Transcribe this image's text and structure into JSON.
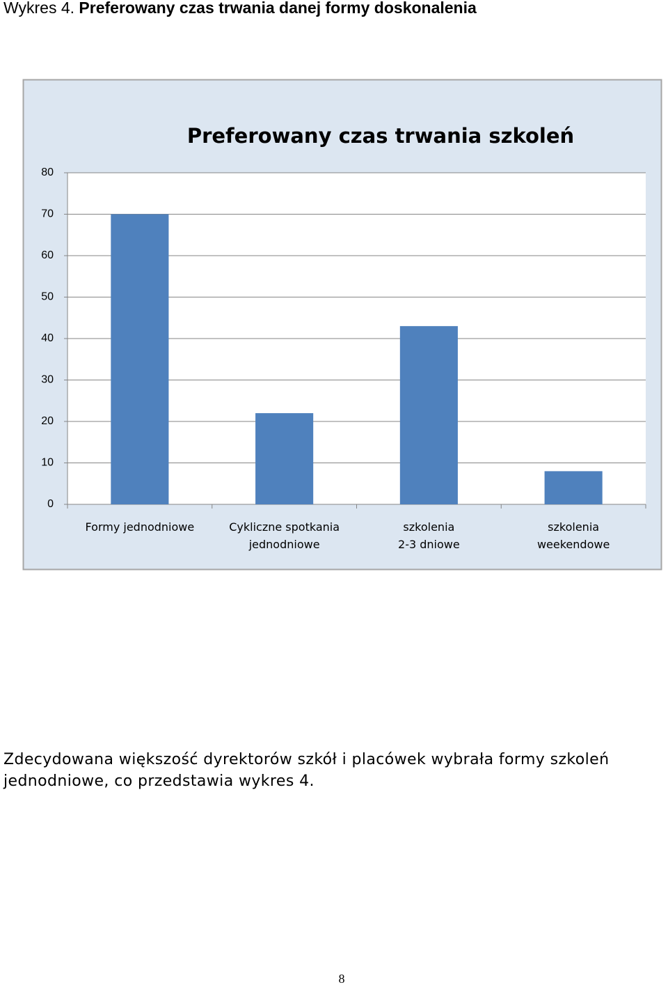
{
  "heading": {
    "label": "Wykres 4.",
    "title": "Preferowany czas trwania danej formy doskonalenia"
  },
  "chart_data": {
    "type": "bar",
    "title": "Preferowany czas trwania szkoleń",
    "categories": [
      "Formy jednodniowe",
      "Cykliczne spotkania\njednodniowe",
      "szkolenia\n2-3 dniowe",
      "szkolenia\nweekendowe"
    ],
    "values": [
      70,
      22,
      43,
      8
    ],
    "color": "#4f81bd",
    "ylim": [
      0,
      80
    ],
    "yticks": [
      0,
      10,
      20,
      30,
      40,
      50,
      60,
      70,
      80
    ],
    "grid": true
  },
  "paragraph": [
    "Zdecydowana większość dyrektorów szkół i placówek wybrała formy szkoleń",
    "jednodniowe, co przedstawia wykres 4."
  ],
  "page_number": "8"
}
